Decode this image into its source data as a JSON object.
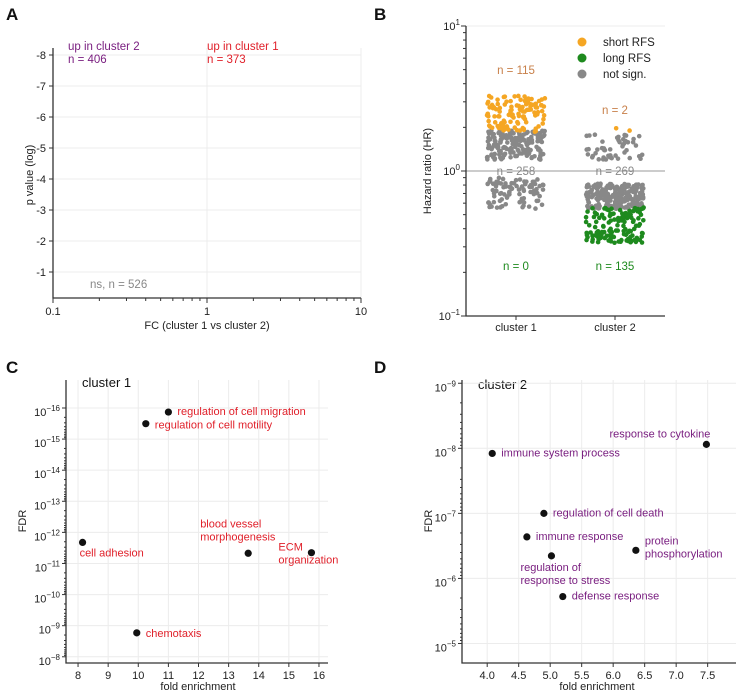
{
  "colors": {
    "purple": "#7a1f80",
    "red": "#e0202a",
    "orange": "#f5a623",
    "orange_text": "#c8804a",
    "green": "#1e8a1e",
    "gray": "#888888",
    "black": "#111111"
  },
  "chart_data": [
    {
      "panel": "A",
      "type": "scatter",
      "xlabel": "FC (cluster 1 vs cluster 2)",
      "ylabel": "p value (log)",
      "xscale": "log",
      "xlim": [
        0.1,
        10
      ],
      "x_ticks": [
        "0.1",
        "1",
        "10"
      ],
      "ylim": [
        -0.2,
        -8.2
      ],
      "y_ticks": [
        "-8",
        "-7",
        "-6",
        "-5",
        "-4",
        "-3",
        "-2",
        "-1"
      ],
      "annotations": [
        {
          "lines": [
            "up in cluster 2",
            "n = 406"
          ],
          "color": "purple"
        },
        {
          "lines": [
            "up in cluster 1",
            "n = 373"
          ],
          "color": "red"
        },
        {
          "lines": [
            "ns, n = 526"
          ],
          "color": "gray"
        }
      ]
    },
    {
      "panel": "B",
      "type": "scatter",
      "ylabel": "Hazard ratio (HR)",
      "yscale": "log",
      "ylim": [
        0.1,
        10
      ],
      "y_ticks": [
        {
          "base": "10",
          "exp": "1"
        },
        {
          "base": "10",
          "exp": "0"
        },
        {
          "base": "10",
          "exp": "−1"
        }
      ],
      "categories": [
        "cluster 1",
        "cluster 2"
      ],
      "reference_line": 1,
      "legend": [
        {
          "label": "short RFS",
          "color": "orange"
        },
        {
          "label": "long RFS",
          "color": "green"
        },
        {
          "label": "not sign.",
          "color": "gray"
        }
      ],
      "legend_position": "top-right",
      "groups": [
        {
          "category": "cluster 1",
          "short_rfs": {
            "n": 115,
            "label": "n = 115",
            "hr_range": [
              1.85,
              3.3
            ]
          },
          "not_sign": {
            "n": 258,
            "label": "n = 258",
            "hr_range_above": [
              1.2,
              1.9
            ],
            "n_above": 170,
            "hr_range_below": [
              0.55,
              0.9
            ]
          },
          "long_rfs": {
            "n": 0,
            "label": "n = 0",
            "hr_range": [
              0.3,
              0.55
            ]
          }
        },
        {
          "category": "cluster 2",
          "short_rfs": {
            "n": 2,
            "label": "n = 2",
            "hr_values": [
              1.97,
              1.9
            ]
          },
          "not_sign": {
            "n": 269,
            "label": "n = 269",
            "hr_range_above": [
              1.2,
              1.8
            ],
            "n_above": 50,
            "hr_range_below": [
              0.55,
              0.82
            ]
          },
          "long_rfs": {
            "n": 135,
            "label": "n = 135",
            "hr_range": [
              0.32,
              0.56
            ]
          }
        }
      ]
    },
    {
      "panel": "C",
      "type": "scatter",
      "title": "cluster 1",
      "xlabel": "fold enrichment",
      "ylabel": "FDR",
      "xlim": [
        7.6,
        16.3
      ],
      "x_ticks": [
        8,
        9,
        10,
        11,
        12,
        13,
        14,
        15,
        16
      ],
      "ylim_exp": [
        -7.8,
        -16.9
      ],
      "y_ticks_exp": [
        -16,
        -15,
        -14,
        -13,
        -12,
        -11,
        -10,
        -9,
        -8
      ],
      "label_color": "red",
      "points": [
        {
          "term": [
            "regulation of cell migration"
          ],
          "fold_enrichment": 11.0,
          "fdr": 1.35e-16
        },
        {
          "term": [
            "regulation of cell motility"
          ],
          "fold_enrichment": 10.25,
          "fdr": 3.2e-16
        },
        {
          "term": [
            "cell adhesion"
          ],
          "fold_enrichment": 8.15,
          "fdr": 2.1e-12
        },
        {
          "term": [
            "blood vessel",
            "morphogenesis"
          ],
          "fold_enrichment": 13.65,
          "fdr": 4.7e-12
        },
        {
          "term": [
            "ECM",
            "organization"
          ],
          "fold_enrichment": 15.75,
          "fdr": 4.5e-12
        },
        {
          "term": [
            "chemotaxis"
          ],
          "fold_enrichment": 9.95,
          "fdr": 1.7e-09
        }
      ]
    },
    {
      "panel": "D",
      "type": "scatter",
      "title": "cluster 2",
      "xlabel": "fold enrichment",
      "ylabel": "FDR",
      "xlim": [
        3.6,
        7.95
      ],
      "x_ticks": [
        "4.0",
        "4.5",
        "5.0",
        "5.5",
        "6.0",
        "6.5",
        "7.0",
        "7.5"
      ],
      "ylim_exp": [
        -4.7,
        -9.05
      ],
      "y_ticks_exp": [
        -9,
        -8,
        -7,
        -6,
        -5
      ],
      "label_color": "purple",
      "points": [
        {
          "term": [
            "response to cytokine"
          ],
          "fold_enrichment": 7.48,
          "fdr": 8.7e-09
        },
        {
          "term": [
            "immune system process"
          ],
          "fold_enrichment": 4.08,
          "fdr": 1.2e-08
        },
        {
          "term": [
            "regulation of cell death"
          ],
          "fold_enrichment": 4.9,
          "fdr": 1e-07
        },
        {
          "term": [
            "immune response"
          ],
          "fold_enrichment": 4.63,
          "fdr": 2.3e-07
        },
        {
          "term": [
            "regulation of",
            "response to stress"
          ],
          "fold_enrichment": 5.02,
          "fdr": 4.5e-07
        },
        {
          "term": [
            "protein",
            "phosphorylation"
          ],
          "fold_enrichment": 6.36,
          "fdr": 3.7e-07
        },
        {
          "term": [
            "defense response"
          ],
          "fold_enrichment": 5.2,
          "fdr": 1.9e-06
        }
      ]
    }
  ],
  "panel_letters": [
    "A",
    "B",
    "C",
    "D"
  ]
}
